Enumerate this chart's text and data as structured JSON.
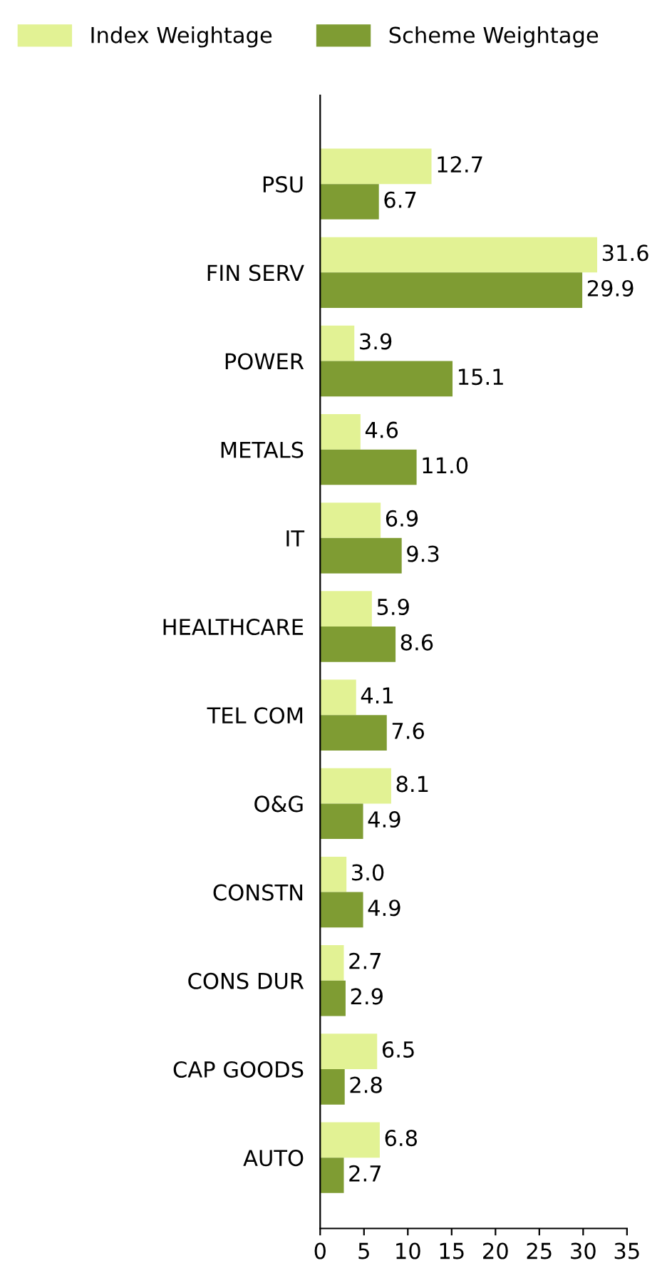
{
  "chart_data": {
    "type": "bar",
    "orientation": "horizontal",
    "categories": [
      "PSU",
      "FIN SERV",
      "POWER",
      "METALS",
      "IT",
      "HEALTHCARE",
      "TEL COM",
      "O&G",
      "CONSTN",
      "CONS DUR",
      "CAP GOODS",
      "AUTO"
    ],
    "series": [
      {
        "name": "Index Weightage",
        "color": "#e2f294",
        "values": [
          12.7,
          31.6,
          3.9,
          4.6,
          6.9,
          5.9,
          4.1,
          8.1,
          3.0,
          2.7,
          6.5,
          6.8
        ],
        "value_labels": [
          "12.7",
          "31.6",
          "3.9",
          "4.6",
          "6.9",
          "5.9",
          "4.1",
          "8.1",
          "3.0",
          "2.7",
          "6.5",
          "6.8"
        ]
      },
      {
        "name": "Scheme Weightage",
        "color": "#7f9c33",
        "values": [
          6.7,
          29.9,
          15.1,
          11.0,
          9.3,
          8.6,
          7.6,
          4.9,
          4.9,
          2.9,
          2.8,
          2.7
        ],
        "value_labels": [
          "6.7",
          "29.9",
          "15.1",
          "11.0",
          "9.3",
          "8.6",
          "7.6",
          "4.9",
          "4.9",
          "2.9",
          "2.8",
          "2.7"
        ]
      }
    ],
    "xlim": [
      0,
      35
    ],
    "xticks": [
      0,
      5,
      10,
      15,
      20,
      25,
      30,
      35
    ],
    "grid": false,
    "legend": "top"
  }
}
